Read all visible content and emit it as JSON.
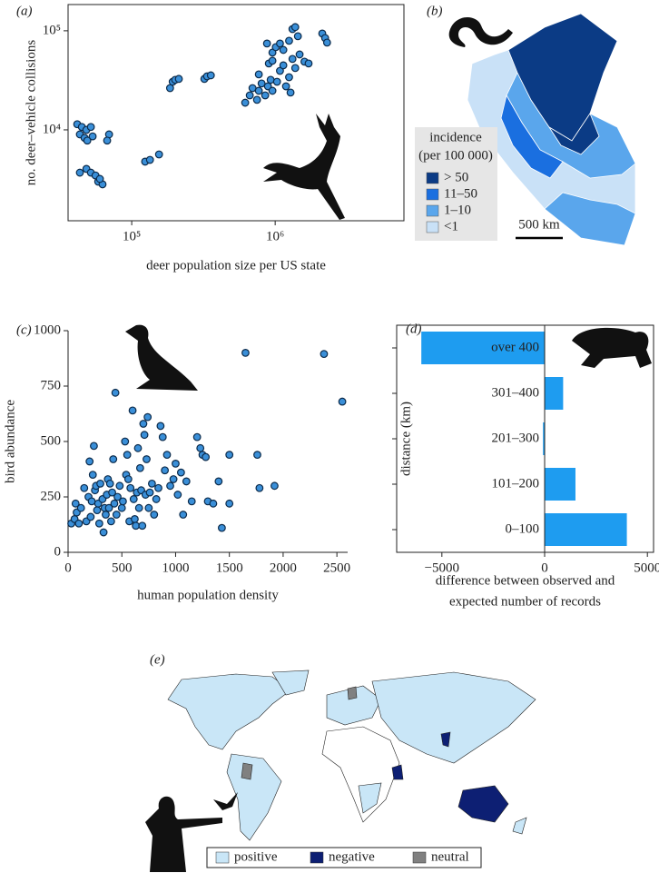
{
  "chart_data": [
    {
      "type": "scatter",
      "panel_label": "(a)",
      "xlabel": "deer population size per US state",
      "ylabel": "no. deer–vehicle collisions",
      "xscale": "log",
      "yscale": "log",
      "xlim": [
        36000,
        7900000
      ],
      "ylim": [
        1210,
        184000
      ],
      "xticks": [
        {
          "value": 100000,
          "label": "10⁵"
        },
        {
          "value": 1000000,
          "label": "10⁶"
        }
      ],
      "yticks": [
        {
          "value": 10000,
          "label": "10⁴"
        },
        {
          "value": 100000,
          "label": "10⁵"
        }
      ],
      "color": "#3a8fd8",
      "x": [
        41700,
        44900,
        48300,
        51900,
        43500,
        46900,
        53400,
        69500,
        67400,
        49000,
        43500,
        48300,
        51900,
        55900,
        58400,
        62600,
        60000,
        124000,
        134000,
        155000,
        193000,
        201000,
        213000,
        185000,
        321000,
        335000,
        356000,
        618000,
        665000,
        695000,
        747000,
        769000,
        804000,
        852000,
        890000,
        930000,
        957000,
        1030000,
        1080000,
        1140000,
        1190000,
        1250000,
        1280000,
        1320000,
        1380000,
        903000,
        957000,
        1010000,
        1080000,
        1140000,
        1250000,
        1320000,
        1380000,
        1440000,
        877000,
        1480000,
        1600000,
        1710000,
        957000,
        769000,
        2130000,
        2230000,
        2300000
      ],
      "values": [
        11400,
        10700,
        10000,
        10700,
        9000,
        8300,
        8600,
        9000,
        7800,
        7800,
        3700,
        4040,
        3700,
        3470,
        3000,
        2820,
        3200,
        4780,
        4980,
        5650,
        30600,
        32000,
        32700,
        26400,
        32700,
        34700,
        35500,
        18800,
        22300,
        26400,
        20100,
        24800,
        29400,
        22300,
        27500,
        32000,
        24800,
        30600,
        39400,
        44800,
        27500,
        34000,
        23800,
        52000,
        42100,
        46800,
        60300,
        68400,
        74400,
        64100,
        79300,
        104000,
        109000,
        88100,
        74400,
        57700,
        48800,
        46800,
        49800,
        36300,
        93800,
        84500,
        76000
      ]
    },
    {
      "type": "scatter",
      "panel_label": "(c)",
      "xlabel": "human population density",
      "ylabel": "bird abundance",
      "xlim": [
        0,
        2600
      ],
      "ylim": [
        0,
        1000
      ],
      "xticks": [
        0,
        500,
        1000,
        1500,
        2000,
        2500
      ],
      "yticks": [
        0,
        250,
        500,
        750,
        1000
      ],
      "color": "#3a8fd8",
      "x": [
        30,
        60,
        70,
        80,
        100,
        120,
        150,
        170,
        190,
        200,
        210,
        220,
        230,
        240,
        250,
        260,
        270,
        280,
        290,
        300,
        320,
        330,
        340,
        350,
        360,
        370,
        380,
        390,
        400,
        410,
        420,
        430,
        440,
        450,
        460,
        480,
        500,
        510,
        530,
        540,
        550,
        560,
        570,
        580,
        600,
        610,
        620,
        630,
        640,
        650,
        660,
        670,
        680,
        690,
        700,
        710,
        720,
        730,
        740,
        750,
        760,
        780,
        800,
        820,
        840,
        860,
        880,
        900,
        920,
        950,
        980,
        1000,
        1020,
        1050,
        1070,
        1100,
        1150,
        1200,
        1230,
        1250,
        1280,
        1300,
        1350,
        1400,
        1430,
        1500,
        1500,
        1650,
        1760,
        1780,
        1920,
        2380,
        2550
      ],
      "values": [
        130,
        150,
        220,
        180,
        130,
        200,
        290,
        140,
        250,
        410,
        160,
        230,
        350,
        480,
        280,
        300,
        190,
        220,
        130,
        310,
        240,
        90,
        200,
        170,
        260,
        330,
        200,
        310,
        140,
        270,
        420,
        220,
        720,
        170,
        250,
        300,
        200,
        230,
        500,
        350,
        440,
        330,
        140,
        290,
        640,
        240,
        150,
        120,
        270,
        470,
        200,
        380,
        280,
        120,
        580,
        530,
        260,
        420,
        610,
        200,
        270,
        310,
        170,
        240,
        290,
        570,
        520,
        370,
        440,
        300,
        330,
        400,
        260,
        360,
        170,
        320,
        230,
        520,
        470,
        440,
        430,
        230,
        220,
        320,
        110,
        440,
        220,
        900,
        440,
        290,
        300,
        895,
        680
      ]
    },
    {
      "type": "hbar",
      "panel_label": "(d)",
      "ylabel": "distance (km)",
      "xlabel": [
        "difference between observed and",
        "expected number of records"
      ],
      "categories": [
        "over 400",
        "301–400",
        "201–300",
        "101–200",
        "0–100"
      ],
      "values": [
        -6000,
        900,
        -80,
        1500,
        4000
      ],
      "color": "#1e9cf0",
      "xlim": [
        -7200,
        5300
      ],
      "xticks": [
        {
          "value": -5000,
          "label": "−5000"
        },
        0,
        5000
      ]
    }
  ],
  "map_b": {
    "panel_label": "(b)",
    "legend_title": [
      "incidence",
      "(per 100 000)"
    ],
    "legend": [
      {
        "label": "> 50",
        "color": "#0b3b85"
      },
      {
        "label": "11–50",
        "color": "#1a6fe0"
      },
      {
        "label": "1–10",
        "color": "#5aa6ec"
      },
      {
        "label": "<1",
        "color": "#c9e1f7"
      }
    ],
    "scale_label": "500 km"
  },
  "map_e": {
    "panel_label": "(e)",
    "legend": [
      {
        "label": "positive",
        "color": "#c9e6f7"
      },
      {
        "label": "negative",
        "color": "#0d1f73"
      },
      {
        "label": "neutral",
        "color": "#808080"
      }
    ]
  }
}
